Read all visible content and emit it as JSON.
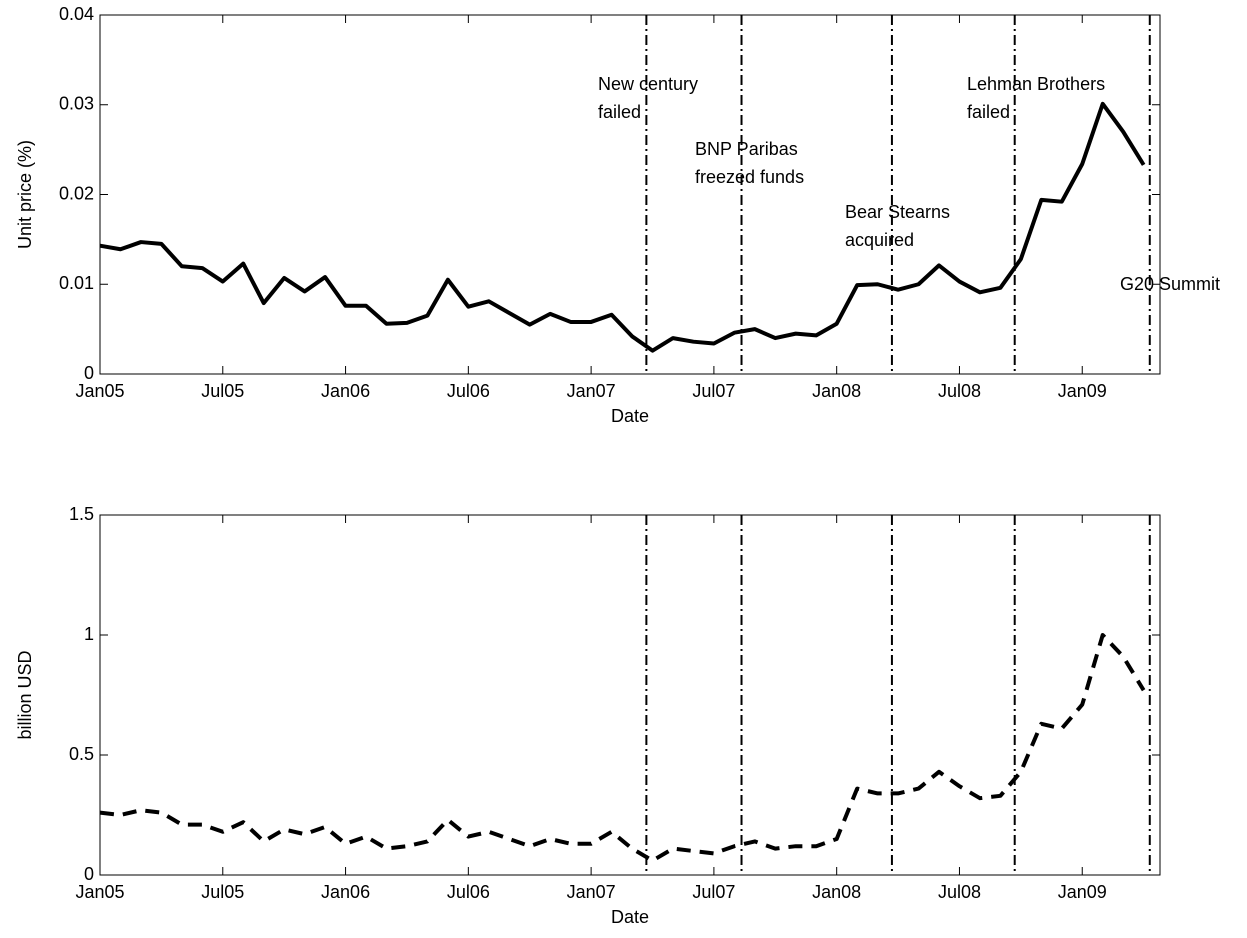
{
  "chart_data": [
    {
      "type": "line",
      "x_label": "Date",
      "y_label": "Unit price (%)",
      "x": [
        0,
        1,
        2,
        3,
        4,
        5,
        6,
        7,
        8,
        9,
        10,
        11,
        12,
        13,
        14,
        15,
        16,
        17,
        18,
        19,
        20,
        21,
        22,
        23,
        24,
        25,
        26,
        27,
        28,
        29,
        30,
        31,
        32,
        33,
        34,
        35,
        36,
        37,
        38,
        39,
        40,
        41,
        42,
        43,
        44,
        45,
        46,
        47,
        48,
        49,
        50,
        51
      ],
      "values": [
        0.0143,
        0.0139,
        0.0147,
        0.0145,
        0.012,
        0.0118,
        0.0103,
        0.0123,
        0.0079,
        0.0107,
        0.0092,
        0.0108,
        0.0076,
        0.0076,
        0.0056,
        0.0057,
        0.0065,
        0.0105,
        0.0075,
        0.0081,
        0.0068,
        0.0055,
        0.0067,
        0.0058,
        0.0058,
        0.0066,
        0.0042,
        0.0026,
        0.004,
        0.0036,
        0.0034,
        0.0046,
        0.005,
        0.004,
        0.0045,
        0.0043,
        0.0056,
        0.0099,
        0.01,
        0.0094,
        0.01,
        0.0121,
        0.0103,
        0.0091,
        0.0096,
        0.0128,
        0.0194,
        0.0192,
        0.0234,
        0.0301,
        0.027,
        0.0233
      ],
      "color": "#000000",
      "line_style": "solid",
      "xlim": [
        0,
        51.8
      ],
      "xticks": [
        {
          "value": 0,
          "label": "Jan05"
        },
        {
          "value": 6,
          "label": "Jul05"
        },
        {
          "value": 12,
          "label": "Jan06"
        },
        {
          "value": 18,
          "label": "Jul06"
        },
        {
          "value": 24,
          "label": "Jan07"
        },
        {
          "value": 30,
          "label": "Jul07"
        },
        {
          "value": 36,
          "label": "Jan08"
        },
        {
          "value": 42,
          "label": "Jul08"
        },
        {
          "value": 48,
          "label": "Jan09"
        }
      ],
      "ylim": [
        0,
        0.04
      ],
      "yticks": [
        0,
        0.01,
        0.02,
        0.03,
        0.04
      ],
      "events": [
        {
          "x": 26.7,
          "label": [
            "New century",
            "failed"
          ]
        },
        {
          "x": 31.35,
          "label": [
            "BNP Paribas",
            "freezed funds"
          ]
        },
        {
          "x": 38.7,
          "label": [
            "Bear Stearns",
            "acquired"
          ]
        },
        {
          "x": 44.7,
          "label": [
            "Lehman Brothers",
            "failed"
          ]
        },
        {
          "x": 51.3,
          "label": [
            "G20 Summit"
          ]
        }
      ]
    },
    {
      "type": "line",
      "x_label": "Date",
      "y_label": "billion USD",
      "x": [
        0,
        1,
        2,
        3,
        4,
        5,
        6,
        7,
        8,
        9,
        10,
        11,
        12,
        13,
        14,
        15,
        16,
        17,
        18,
        19,
        20,
        21,
        22,
        23,
        24,
        25,
        26,
        27,
        28,
        29,
        30,
        31,
        32,
        33,
        34,
        35,
        36,
        37,
        38,
        39,
        40,
        41,
        42,
        43,
        44,
        45,
        46,
        47,
        48,
        49,
        50,
        51
      ],
      "values": [
        0.26,
        0.25,
        0.27,
        0.26,
        0.21,
        0.21,
        0.18,
        0.22,
        0.14,
        0.19,
        0.17,
        0.2,
        0.13,
        0.16,
        0.11,
        0.12,
        0.14,
        0.23,
        0.16,
        0.18,
        0.15,
        0.12,
        0.15,
        0.13,
        0.13,
        0.18,
        0.11,
        0.06,
        0.11,
        0.1,
        0.09,
        0.12,
        0.14,
        0.11,
        0.12,
        0.12,
        0.15,
        0.36,
        0.34,
        0.34,
        0.36,
        0.43,
        0.37,
        0.32,
        0.33,
        0.43,
        0.63,
        0.61,
        0.71,
        1.0,
        0.91,
        0.77
      ],
      "color": "#000000",
      "line_style": "dashed",
      "xlim": [
        0,
        51.8
      ],
      "xticks": [
        {
          "value": 0,
          "label": "Jan05"
        },
        {
          "value": 6,
          "label": "Jul05"
        },
        {
          "value": 12,
          "label": "Jan06"
        },
        {
          "value": 18,
          "label": "Jul06"
        },
        {
          "value": 24,
          "label": "Jan07"
        },
        {
          "value": 30,
          "label": "Jul07"
        },
        {
          "value": 36,
          "label": "Jan08"
        },
        {
          "value": 42,
          "label": "Jul08"
        },
        {
          "value": 48,
          "label": "Jan09"
        }
      ],
      "ylim": [
        0,
        1.5
      ],
      "yticks": [
        0,
        0.5,
        1,
        1.5
      ],
      "events": [
        {
          "x": 26.7
        },
        {
          "x": 31.35
        },
        {
          "x": 38.7
        },
        {
          "x": 44.7
        },
        {
          "x": 51.3
        }
      ]
    }
  ]
}
